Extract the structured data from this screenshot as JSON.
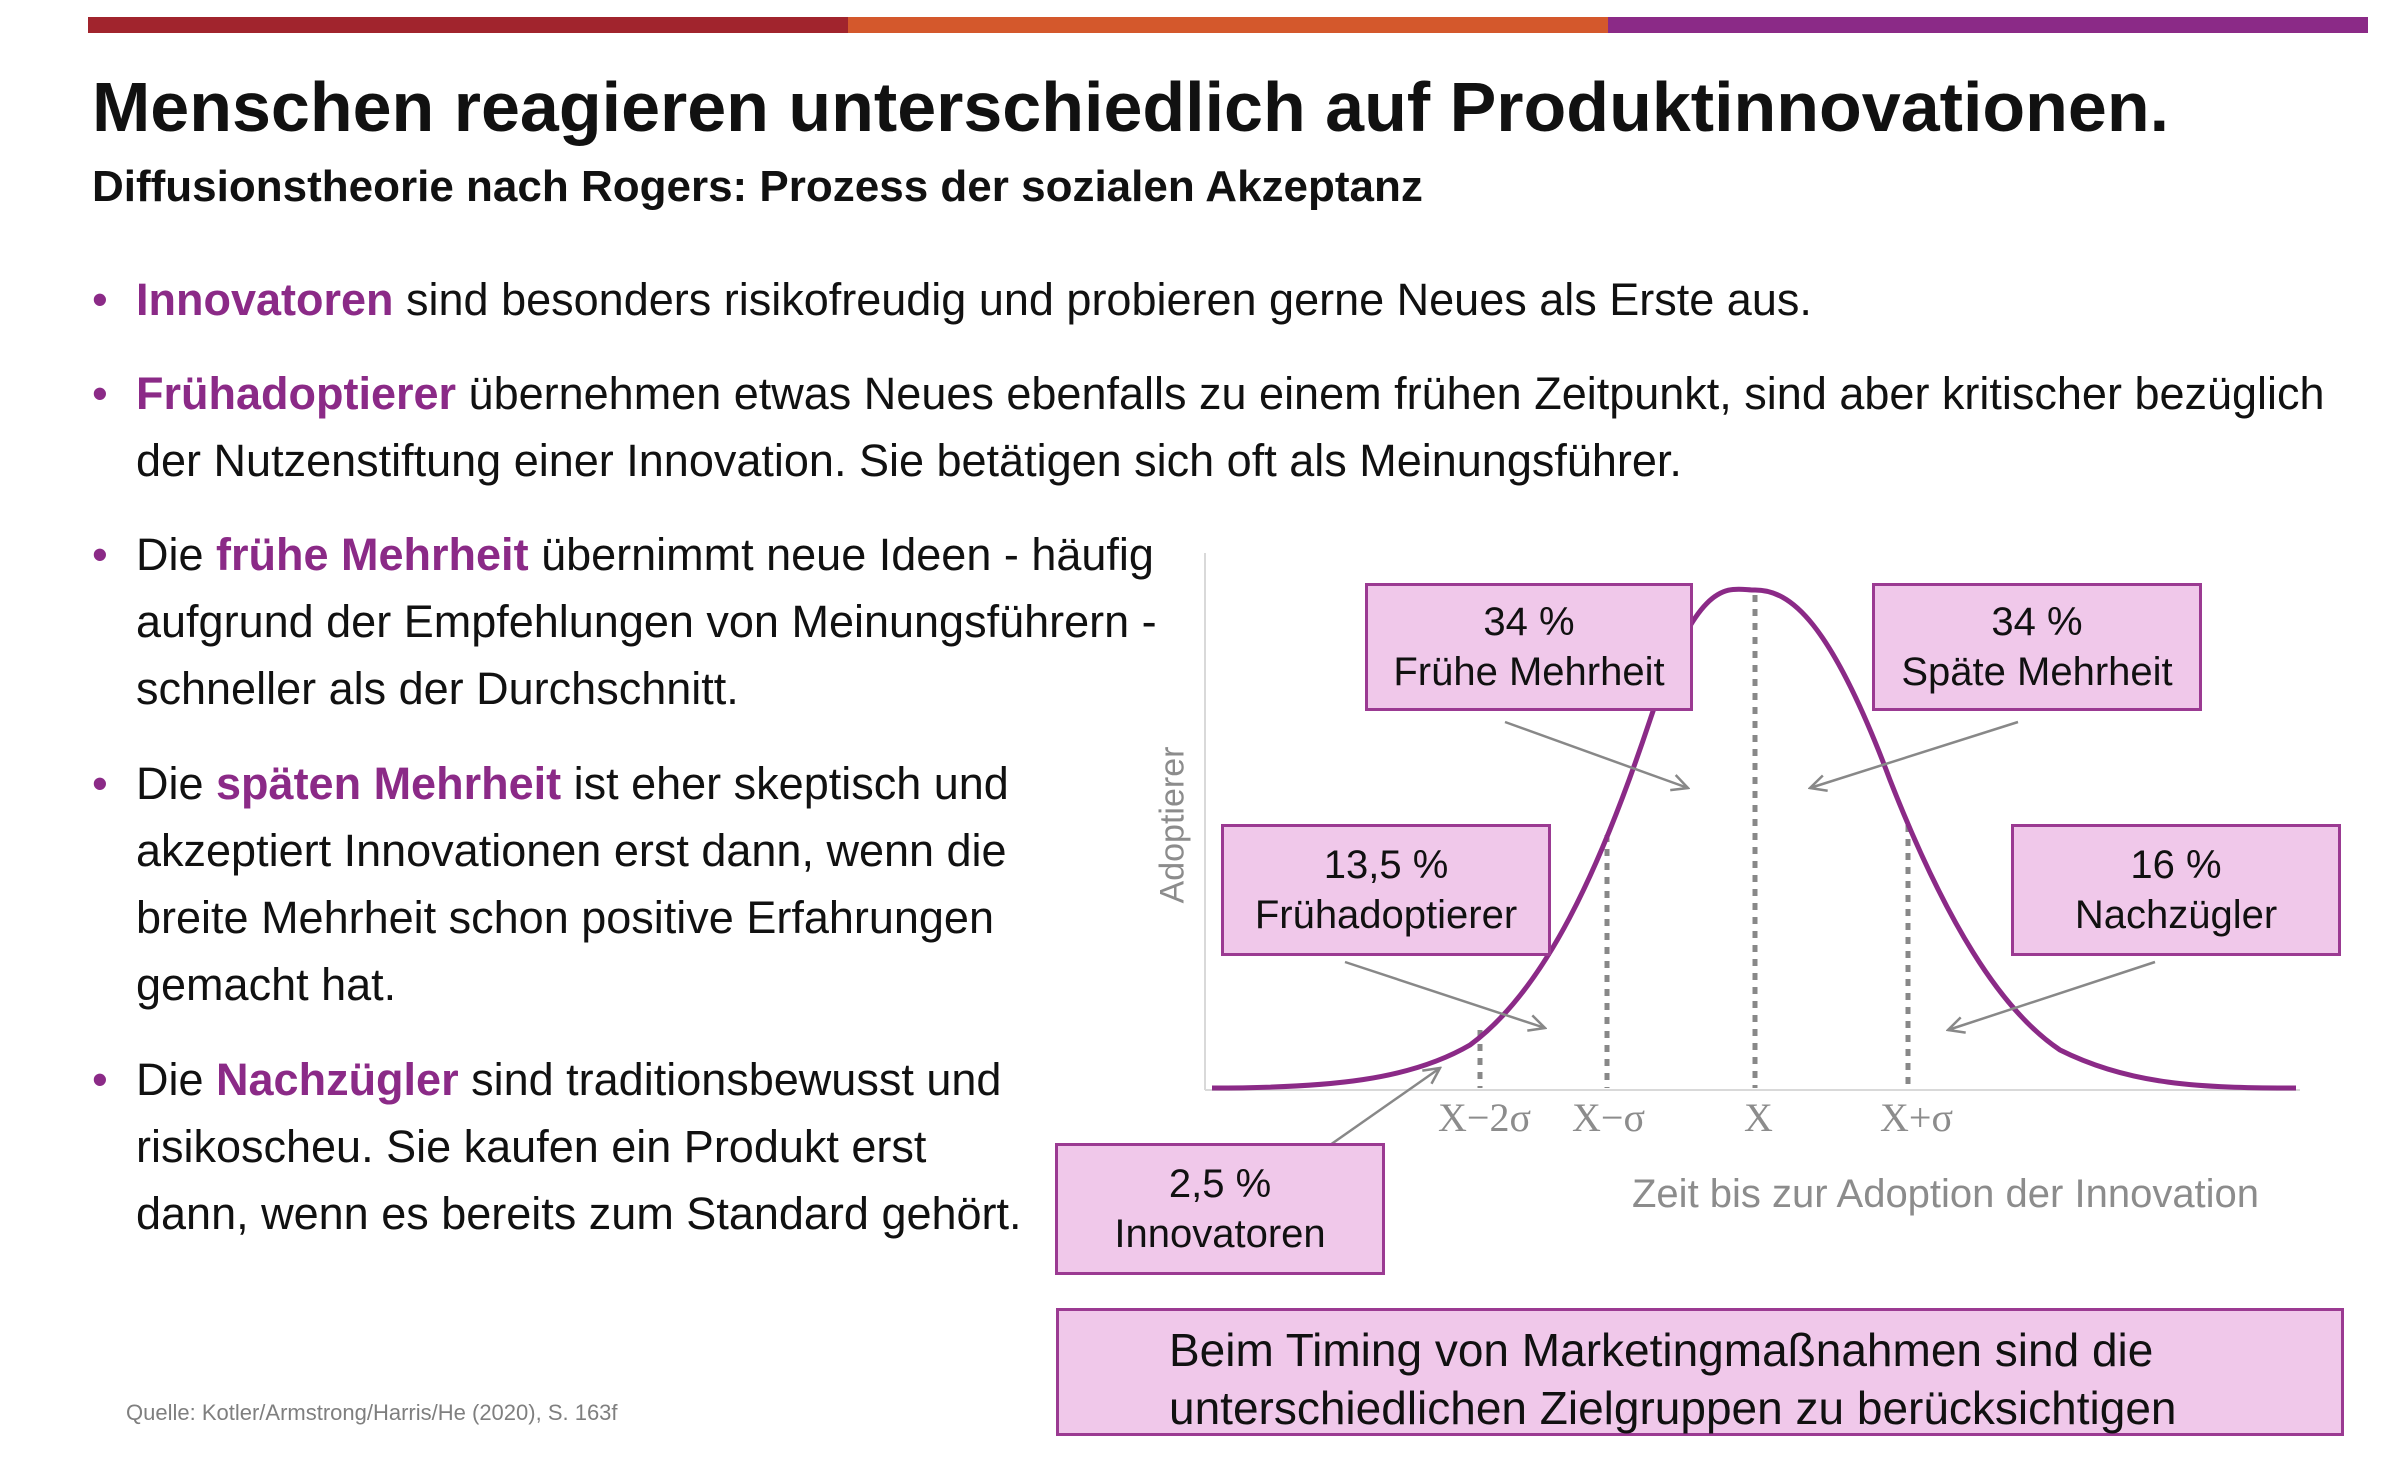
{
  "colors": {
    "accent": "#8b2a87",
    "curve": "#8b2a87",
    "box_fill": "#f0c8ea",
    "box_border": "#9b3a92",
    "bar": [
      "#a1242d",
      "#d4582c",
      "#8b2a87"
    ],
    "muted_text": "#8c8c8c"
  },
  "header": {
    "title": "Menschen reagieren unterschiedlich auf Produktinnovationen.",
    "subtitle": "Diffusionstheorie nach Rogers: Prozess der sozialen Akzeptanz"
  },
  "bullets": [
    {
      "pre": "",
      "highlight": "Innovatoren",
      "post": " sind besonders risikofreudig und probieren gerne Neues als Erste aus."
    },
    {
      "pre": "",
      "highlight": "Frühadoptierer",
      "post": " übernehmen etwas Neues ebenfalls zu einem frühen Zeitpunkt, sind aber kritischer bezüglich der Nutzenstiftung einer Innovation. Sie betätigen sich oft als Meinungsführer."
    },
    {
      "pre": "Die ",
      "highlight": "frühe Mehrheit",
      "post": " übernimmt neue Ideen - häufig aufgrund der Empfehlungen von Meinungsführern - schneller als der Durchschnitt."
    },
    {
      "pre": "Die ",
      "highlight": "späten Mehrheit",
      "post": " ist eher skeptisch und akzeptiert Innovationen erst dann, wenn die breite  Mehrheit schon positive Erfahrungen gemacht hat."
    },
    {
      "pre": "Die ",
      "highlight": "Nachzügler",
      "post": " sind traditionsbewusst und risikoscheu. Sie kaufen ein Produkt erst dann, wenn es bereits zum Standard gehört."
    }
  ],
  "diagram": {
    "ylabel": "Adoptierer",
    "xlabel": "Zeit bis zur Adoption der Innovation",
    "ticks": [
      "X−2σ",
      "X−σ",
      "X",
      "X+σ"
    ],
    "segments": [
      {
        "percent": "2,5 %",
        "label": "Innovatoren"
      },
      {
        "percent": "13,5 %",
        "label": "Frühadoptierer"
      },
      {
        "percent": "34 %",
        "label": "Frühe Mehrheit"
      },
      {
        "percent": "34 %",
        "label": "Späte Mehrheit"
      },
      {
        "percent": "16 %",
        "label": "Nachzügler"
      }
    ]
  },
  "callout": {
    "line1": "Beim Timing von Marketingmaßnahmen sind die",
    "line2": "unterschiedlichen Zielgruppen zu berücksichtigen"
  },
  "source": "Quelle: Kotler/Armstrong/Harris/He (2020), S. 163f"
}
